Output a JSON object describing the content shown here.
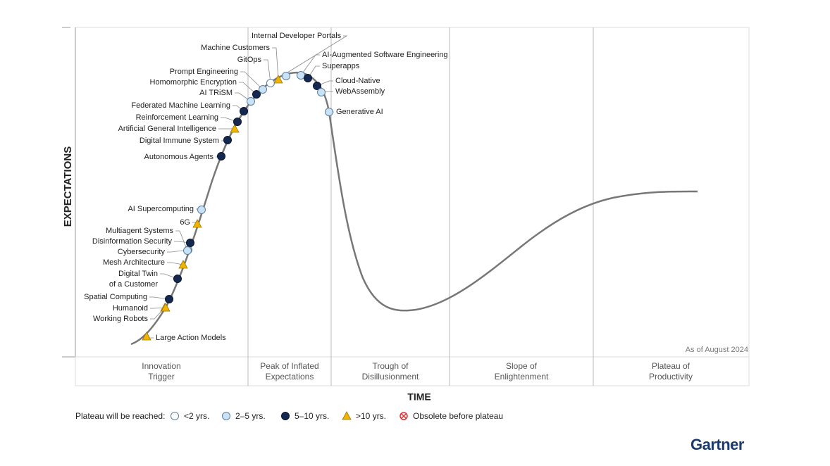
{
  "y_axis_label": "EXPECTATIONS",
  "x_axis_label": "TIME",
  "as_of": "As of August 2024",
  "brand": "Gartner",
  "phases": [
    [
      "Innovation",
      "Trigger"
    ],
    [
      "Peak of Inflated",
      "Expectations"
    ],
    [
      "Trough of",
      "Disillusionment"
    ],
    [
      "Slope of",
      "Enlightenment"
    ],
    [
      "Plateau of",
      "Productivity"
    ]
  ],
  "legend": {
    "label": "Plateau will be reached:",
    "items": [
      "<2 yrs.",
      "2–5 yrs.",
      "5–10 yrs.",
      ">10 yrs.",
      "Obsolete before plateau"
    ]
  },
  "nodes": [
    {
      "label": [
        "Large Action Models"
      ],
      "plateau": ">10 yrs."
    },
    {
      "label": [
        "Working Robots"
      ],
      "plateau": ">10 yrs."
    },
    {
      "label": [
        "Humanoid"
      ],
      "plateau": ">10 yrs."
    },
    {
      "label": [
        "Spatial Computing"
      ],
      "plateau": "5–10 yrs."
    },
    {
      "label": [
        "Digital Twin",
        "of a Customer"
      ],
      "plateau": "5–10 yrs."
    },
    {
      "label": [
        "Mesh Architecture"
      ],
      "plateau": ">10 yrs."
    },
    {
      "label": [
        "Cybersecurity"
      ],
      "plateau": "2–5 yrs."
    },
    {
      "label": [
        "Disinformation Security"
      ],
      "plateau": "5–10 yrs."
    },
    {
      "label": [
        "Multiagent Systems"
      ],
      "plateau": "2–5 yrs."
    },
    {
      "label": [
        "6G"
      ],
      "plateau": ">10 yrs."
    },
    {
      "label": [
        "AI Supercomputing"
      ],
      "plateau": "2–5 yrs."
    },
    {
      "label": [
        "Autonomous Agents"
      ],
      "plateau": "5–10 yrs."
    },
    {
      "label": [
        "Digital Immune System"
      ],
      "plateau": "5–10 yrs."
    },
    {
      "label": [
        "Artificial General Intelligence"
      ],
      "plateau": ">10 yrs."
    },
    {
      "label": [
        "Reinforcement Learning"
      ],
      "plateau": "5–10 yrs."
    },
    {
      "label": [
        "Federated Machine Learning"
      ],
      "plateau": "5–10 yrs."
    },
    {
      "label": [
        "AI TRiSM"
      ],
      "plateau": "2–5 yrs."
    },
    {
      "label": [
        "Homomorphic Encryption"
      ],
      "plateau": "5–10 yrs."
    },
    {
      "label": [
        "Prompt Engineering"
      ],
      "plateau": "2–5 yrs."
    },
    {
      "label": [
        "GitOps"
      ],
      "plateau": "<2 yrs."
    },
    {
      "label": [
        "Machine Customers"
      ],
      "plateau": ">10 yrs."
    },
    {
      "label": [
        "Internal Developer Portals"
      ],
      "plateau": "2–5 yrs."
    },
    {
      "label": [
        "AI-Augmented Software Engineering"
      ],
      "plateau": "2–5 yrs."
    },
    {
      "label": [
        "Superapps"
      ],
      "plateau": "5–10 yrs."
    },
    {
      "label": [
        "Cloud-Native"
      ],
      "plateau": "5–10 yrs."
    },
    {
      "label": [
        "WebAssembly"
      ],
      "plateau": "2–5 yrs."
    },
    {
      "label": [
        "Generative AI"
      ],
      "plateau": "2–5 yrs."
    }
  ]
}
